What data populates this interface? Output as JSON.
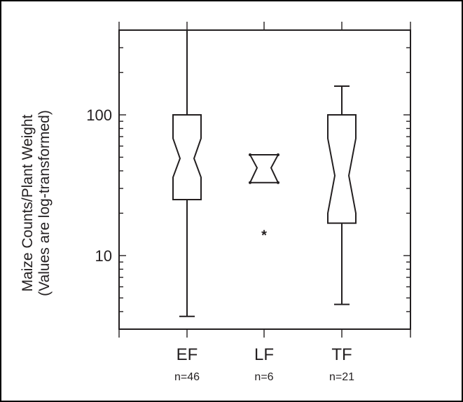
{
  "chart_data": {
    "type": "boxplot",
    "title": "",
    "ylabel": [
      "Maize Counts/Plant Weight",
      "(Values are log-transformed)"
    ],
    "xlabel": "",
    "yscale": "log",
    "ylim": [
      3,
      400
    ],
    "yticks": [
      10,
      100
    ],
    "notched": true,
    "categories": [
      {
        "name": "EF",
        "n_label": "n=46",
        "min": 3.7,
        "q1": 25,
        "median": 49,
        "q3": 100,
        "max": 400,
        "notch_low": 36,
        "notch_high": 68,
        "outliers": []
      },
      {
        "name": "LF",
        "n_label": "n=6",
        "min": 33,
        "q1": 33,
        "median": 42,
        "q3": 52,
        "max": 52,
        "notch_low": 33,
        "notch_high": 52,
        "outliers": [
          14.5
        ]
      },
      {
        "name": "TF",
        "n_label": "n=21",
        "min": 4.5,
        "q1": 17,
        "median": 37,
        "q3": 100,
        "max": 160,
        "notch_low": 20,
        "notch_high": 68,
        "outliers": []
      }
    ],
    "colors": {
      "line": "#231f20",
      "background": "#ffffff"
    }
  }
}
